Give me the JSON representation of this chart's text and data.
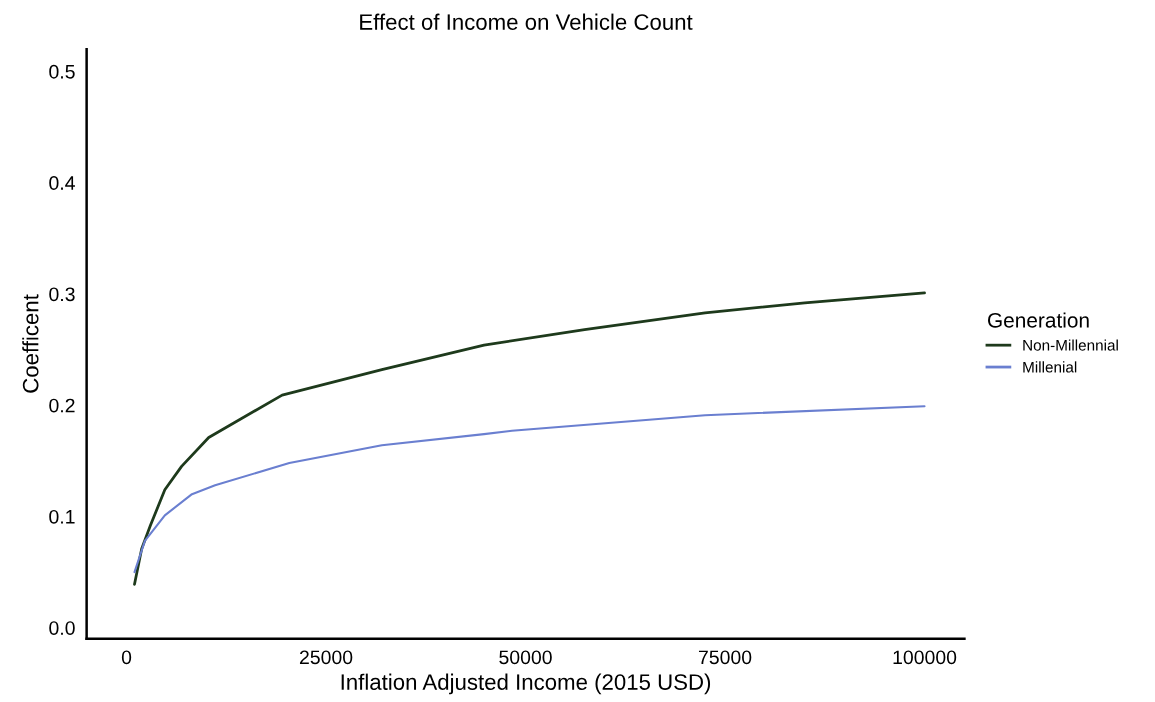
{
  "chart_data": {
    "type": "line",
    "title": "Effect of Income on Vehicle Count",
    "xlabel": "Inflation Adjusted Income (2015 USD)",
    "ylabel": "Coefficent",
    "legend_title": "Generation",
    "xlim": [
      -5000,
      105000
    ],
    "xticks": [
      0,
      25000,
      50000,
      75000,
      100000
    ],
    "ylim": [
      -0.01,
      0.52
    ],
    "yticks": [
      {
        "value": 0,
        "label": "0.0"
      },
      0.1,
      0.2,
      0.3,
      0.4,
      0.5
    ],
    "grid": false,
    "legend": "right",
    "marker": "none",
    "line_style": "solid",
    "series": [
      {
        "name": "Non-Millennial",
        "color": "#1e3a1c",
        "x": [
          1000,
          1900,
          3000,
          4800,
          6900,
          10300,
          19500,
          32000,
          44800,
          57400,
          72500,
          85000,
          100000
        ],
        "values": [
          0.039,
          0.071,
          0.092,
          0.124,
          0.145,
          0.171,
          0.209,
          0.232,
          0.254,
          0.268,
          0.283,
          0.292,
          0.301
        ]
      },
      {
        "name": "Millenial",
        "color": "#6a7fd0",
        "x": [
          1000,
          2300,
          4800,
          8200,
          11100,
          20400,
          32000,
          44800,
          48300,
          72500,
          100000
        ],
        "values": [
          0.05,
          0.078,
          0.101,
          0.12,
          0.128,
          0.148,
          0.164,
          0.174,
          0.177,
          0.191,
          0.199
        ]
      }
    ]
  }
}
